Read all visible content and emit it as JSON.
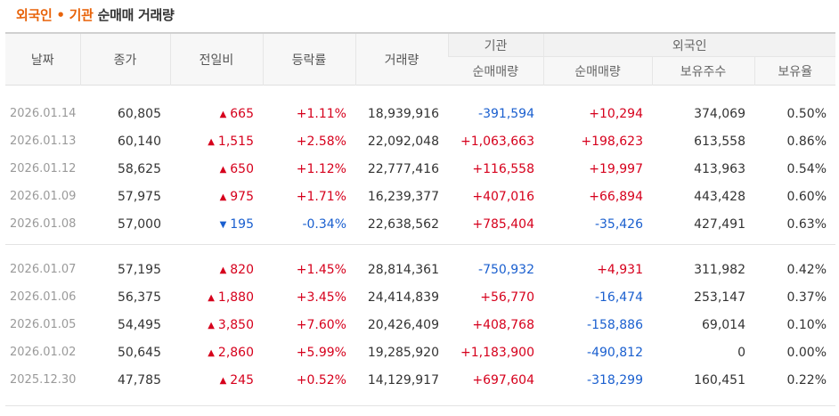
{
  "title": {
    "part1": "외국인 • 기관",
    "part2": "순매매 거래량"
  },
  "headers": {
    "date": "날짜",
    "close": "종가",
    "change": "전일비",
    "rate": "등락률",
    "volume": "거래량",
    "institution_group": "기관",
    "institution_net": "순매매량",
    "foreign_group": "외국인",
    "foreign_net": "순매매량",
    "holdings": "보유주수",
    "holding_ratio": "보유율"
  },
  "colors": {
    "up": "#d6001c",
    "down": "#1a5fcf",
    "title_accent": "#e8630a"
  },
  "rows": [
    {
      "date": "2026.01.14",
      "close": "60,805",
      "change": "665",
      "change_dir": "up",
      "rate": "+1.11%",
      "volume": "18,939,916",
      "inst": "-391,594",
      "foreign": "+10,294",
      "holdings": "374,069",
      "ratio": "0.50%"
    },
    {
      "date": "2026.01.13",
      "close": "60,140",
      "change": "1,515",
      "change_dir": "up",
      "rate": "+2.58%",
      "volume": "22,092,048",
      "inst": "+1,063,663",
      "foreign": "+198,623",
      "holdings": "613,558",
      "ratio": "0.86%"
    },
    {
      "date": "2026.01.12",
      "close": "58,625",
      "change": "650",
      "change_dir": "up",
      "rate": "+1.12%",
      "volume": "22,777,416",
      "inst": "+116,558",
      "foreign": "+19,997",
      "holdings": "413,963",
      "ratio": "0.54%"
    },
    {
      "date": "2026.01.09",
      "close": "57,975",
      "change": "975",
      "change_dir": "up",
      "rate": "+1.71%",
      "volume": "16,239,377",
      "inst": "+407,016",
      "foreign": "+66,894",
      "holdings": "443,428",
      "ratio": "0.60%"
    },
    {
      "date": "2026.01.08",
      "close": "57,000",
      "change": "195",
      "change_dir": "down",
      "rate": "-0.34%",
      "volume": "22,638,562",
      "inst": "+785,404",
      "foreign": "-35,426",
      "holdings": "427,491",
      "ratio": "0.63%"
    },
    {
      "date": "2026.01.07",
      "close": "57,195",
      "change": "820",
      "change_dir": "up",
      "rate": "+1.45%",
      "volume": "28,814,361",
      "inst": "-750,932",
      "foreign": "+4,931",
      "holdings": "311,982",
      "ratio": "0.42%"
    },
    {
      "date": "2026.01.06",
      "close": "56,375",
      "change": "1,880",
      "change_dir": "up",
      "rate": "+3.45%",
      "volume": "24,414,839",
      "inst": "+56,770",
      "foreign": "-16,474",
      "holdings": "253,147",
      "ratio": "0.37%"
    },
    {
      "date": "2026.01.05",
      "close": "54,495",
      "change": "3,850",
      "change_dir": "up",
      "rate": "+7.60%",
      "volume": "20,426,409",
      "inst": "+408,768",
      "foreign": "-158,886",
      "holdings": "69,014",
      "ratio": "0.10%"
    },
    {
      "date": "2026.01.02",
      "close": "50,645",
      "change": "2,860",
      "change_dir": "up",
      "rate": "+5.99%",
      "volume": "19,285,920",
      "inst": "+1,183,900",
      "foreign": "-490,812",
      "holdings": "0",
      "ratio": "0.00%"
    },
    {
      "date": "2025.12.30",
      "close": "47,785",
      "change": "245",
      "change_dir": "up",
      "rate": "+0.52%",
      "volume": "14,129,917",
      "inst": "+697,604",
      "foreign": "-318,299",
      "holdings": "160,451",
      "ratio": "0.22%"
    }
  ]
}
